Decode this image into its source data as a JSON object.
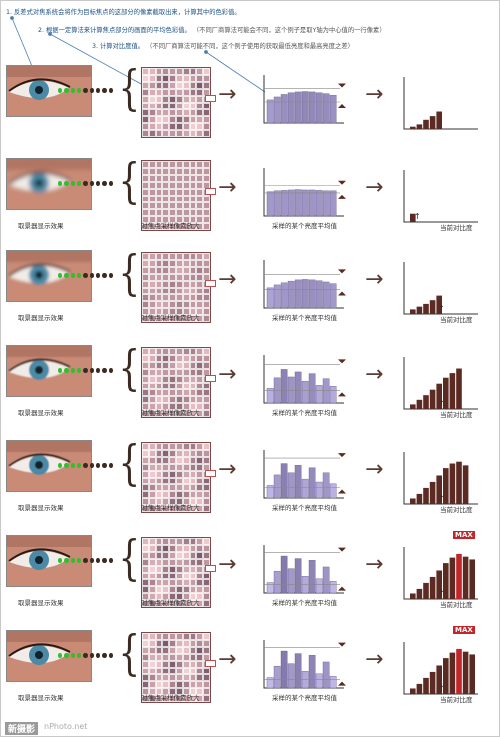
{
  "steps": [
    {
      "label": "1. 反差式对焦系统会将作为目标焦点的这部分的像素截取出来，计算其中的色彩值。",
      "note": ""
    },
    {
      "label": "2. 根据一定算法来计算焦点部分的画面的平均色彩值。",
      "note": "（不同厂商算法可能会不同，这个例子是取Y轴为中心值的一行像素）"
    },
    {
      "label": "3. 计算对比度值。",
      "note": "（不同厂商算法可能不同，这个例子使用的获取最低亮度和最高亮度之差）"
    }
  ],
  "captions": {
    "eye": "取景器显示效果",
    "grid": "对焦点采样像素放大",
    "hist": "采样的某个亮度平均值",
    "result": "当前对比度"
  },
  "max_label": "MAX",
  "watermark": {
    "site": "新摄影",
    "url": "nPhoto.net"
  },
  "rows": [
    {
      "blur": 0.0,
      "hist": [
        0.55,
        0.62,
        0.68,
        0.72,
        0.74,
        0.75,
        0.74,
        0.72,
        0.7,
        0.66
      ],
      "hist_top": 0.82,
      "hist_bottom": 0.5,
      "result": [
        0.05,
        0.1,
        0.2,
        0.28,
        0.38
      ],
      "max": false,
      "eye_caption": false,
      "res_caption": false
    },
    {
      "blur": 2.5,
      "hist": [
        0.58,
        0.6,
        0.61,
        0.62,
        0.63,
        0.62,
        0.62,
        0.61,
        0.6,
        0.6
      ],
      "hist_top": 0.72,
      "hist_bottom": 0.55,
      "result": [
        0.18
      ],
      "max": false,
      "eye_caption": true,
      "res_caption": true
    },
    {
      "blur": 1.6,
      "hist": [
        0.48,
        0.55,
        0.6,
        0.64,
        0.67,
        0.68,
        0.67,
        0.65,
        0.62,
        0.58
      ],
      "hist_top": 0.8,
      "hist_bottom": 0.44,
      "result": [
        0.1,
        0.16,
        0.22,
        0.3,
        0.4
      ],
      "max": false,
      "eye_caption": true,
      "res_caption": true
    },
    {
      "blur": 0.8,
      "hist": [
        0.35,
        0.6,
        0.8,
        0.62,
        0.74,
        0.52,
        0.7,
        0.42,
        0.58,
        0.4
      ],
      "hist_top": 0.92,
      "hist_bottom": 0.3,
      "result": [
        0.1,
        0.2,
        0.3,
        0.42,
        0.55,
        0.68,
        0.78,
        0.88
      ],
      "max": false,
      "eye_caption": true,
      "res_caption": true
    },
    {
      "blur": 0.4,
      "hist": [
        0.3,
        0.55,
        0.82,
        0.6,
        0.78,
        0.45,
        0.72,
        0.38,
        0.6,
        0.34
      ],
      "hist_top": 0.95,
      "hist_bottom": 0.25,
      "result": [
        0.12,
        0.22,
        0.35,
        0.48,
        0.62,
        0.78,
        0.88,
        0.92,
        0.84
      ],
      "max": false,
      "eye_caption": true,
      "res_caption": true
    },
    {
      "blur": 0.0,
      "hist": [
        0.25,
        0.52,
        0.88,
        0.58,
        0.82,
        0.4,
        0.78,
        0.34,
        0.62,
        0.28
      ],
      "hist_top": 0.96,
      "hist_bottom": 0.2,
      "result": [
        0.12,
        0.22,
        0.35,
        0.48,
        0.62,
        0.78,
        0.9,
        0.98,
        0.92,
        0.86
      ],
      "max": true,
      "eye_caption": true,
      "res_caption": true
    },
    {
      "blur": 0.0,
      "hist": [
        0.25,
        0.52,
        0.88,
        0.58,
        0.82,
        0.4,
        0.78,
        0.34,
        0.62,
        0.28
      ],
      "hist_top": 0.96,
      "hist_bottom": 0.2,
      "result": [
        0.12,
        0.22,
        0.35,
        0.48,
        0.62,
        0.78,
        0.9,
        0.98,
        0.92,
        0.86
      ],
      "max": true,
      "eye_caption": true,
      "res_caption": true
    }
  ]
}
